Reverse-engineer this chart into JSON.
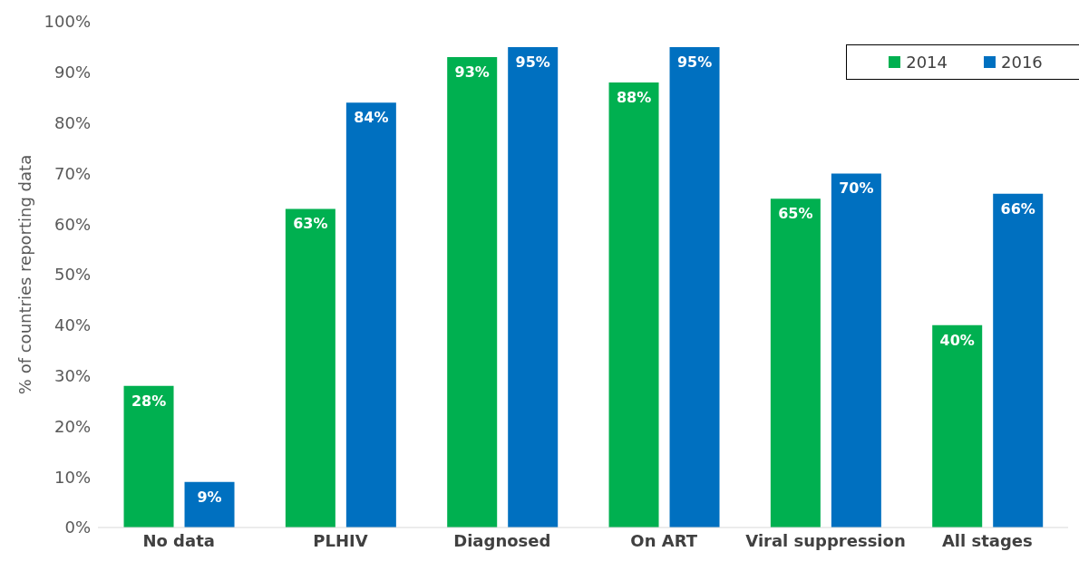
{
  "chart_data": {
    "type": "bar",
    "ylabel": "% of countries reporting data",
    "categories": [
      "No data",
      "PLHIV",
      "Diagnosed",
      "On ART",
      "Viral suppression",
      "All stages"
    ],
    "series": [
      {
        "name": "2014",
        "color": "#00b050",
        "values": [
          28,
          63,
          93,
          88,
          65,
          40
        ],
        "value_labels": [
          "28%",
          "63%",
          "93%",
          "88%",
          "65%",
          "40%"
        ]
      },
      {
        "name": "2016",
        "color": "#0070c0",
        "values": [
          9,
          84,
          95,
          95,
          70,
          66
        ],
        "value_labels": [
          "9%",
          "84%",
          "95%",
          "95%",
          "70%",
          "66%"
        ]
      }
    ],
    "ylim": [
      0,
      100
    ],
    "yticks": [
      {
        "value": 0,
        "label": "0%"
      },
      {
        "value": 10,
        "label": "10%"
      },
      {
        "value": 20,
        "label": "20%"
      },
      {
        "value": 30,
        "label": "30%"
      },
      {
        "value": 40,
        "label": "40%"
      },
      {
        "value": 50,
        "label": "50%"
      },
      {
        "value": 60,
        "label": "60%"
      },
      {
        "value": 70,
        "label": "70%"
      },
      {
        "value": 80,
        "label": "80%"
      },
      {
        "value": 90,
        "label": "90%"
      },
      {
        "value": 100,
        "label": "100%"
      }
    ],
    "grid": false,
    "legend": "top right"
  }
}
